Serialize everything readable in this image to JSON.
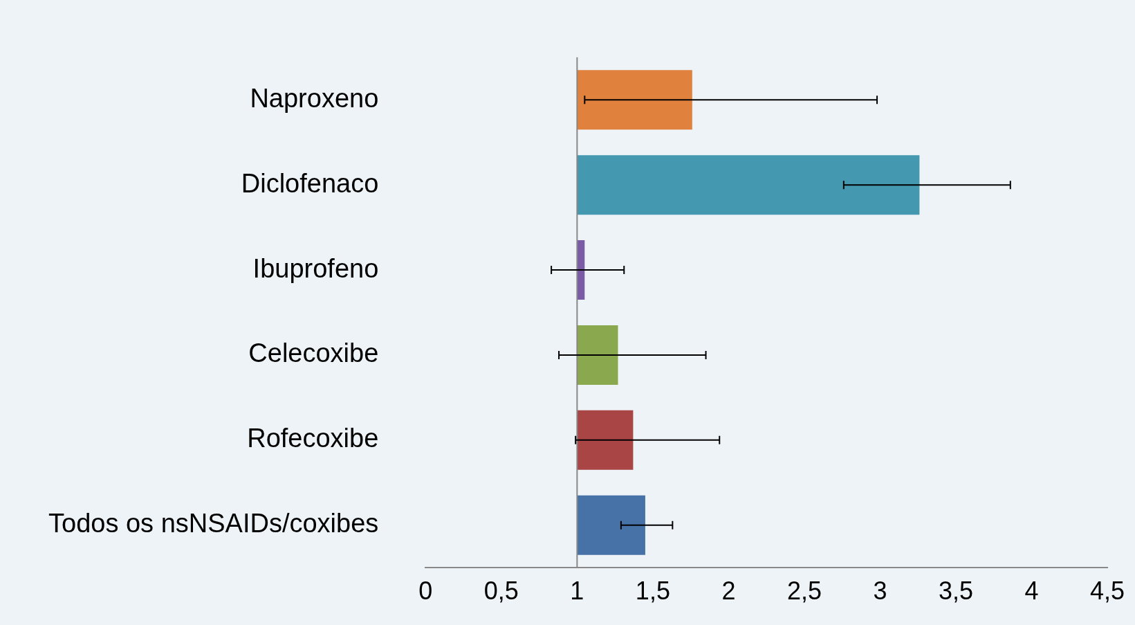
{
  "chart_data": {
    "type": "bar",
    "orientation": "horizontal",
    "categories": [
      "Naproxeno",
      "Diclofenaco",
      "Ibuprofeno",
      "Celecoxibe",
      "Rofecoxibe",
      "Todos os nsNSAIDs/coxibes"
    ],
    "base": [
      1,
      1,
      1,
      1,
      1,
      1
    ],
    "values": [
      0.76,
      2.26,
      0.05,
      0.27,
      0.37,
      0.45
    ],
    "colors": [
      "#e0823d",
      "#4499b0",
      "#7b5aa6",
      "#8aa84e",
      "#a94545",
      "#4672a8"
    ],
    "errors": [
      [
        1.05,
        2.98
      ],
      [
        2.76,
        3.86
      ],
      [
        0.83,
        1.31
      ],
      [
        0.88,
        1.85
      ],
      [
        0.99,
        1.94
      ],
      [
        1.29,
        1.63
      ]
    ],
    "xlim": [
      0,
      4.5
    ],
    "xticks": [
      0,
      {
        "value": 0.5,
        "label": "0,5"
      },
      1,
      {
        "value": 1.5,
        "label": "1,5"
      },
      2,
      {
        "value": 2.5,
        "label": "2,5"
      },
      3,
      {
        "value": 3.5,
        "label": "3,5"
      },
      4,
      {
        "value": 4.5,
        "label": "4,5"
      }
    ],
    "ref_lines": [
      {
        "axis": "x",
        "value": 1,
        "color": "#888888"
      }
    ],
    "grid": false,
    "legend": false
  }
}
